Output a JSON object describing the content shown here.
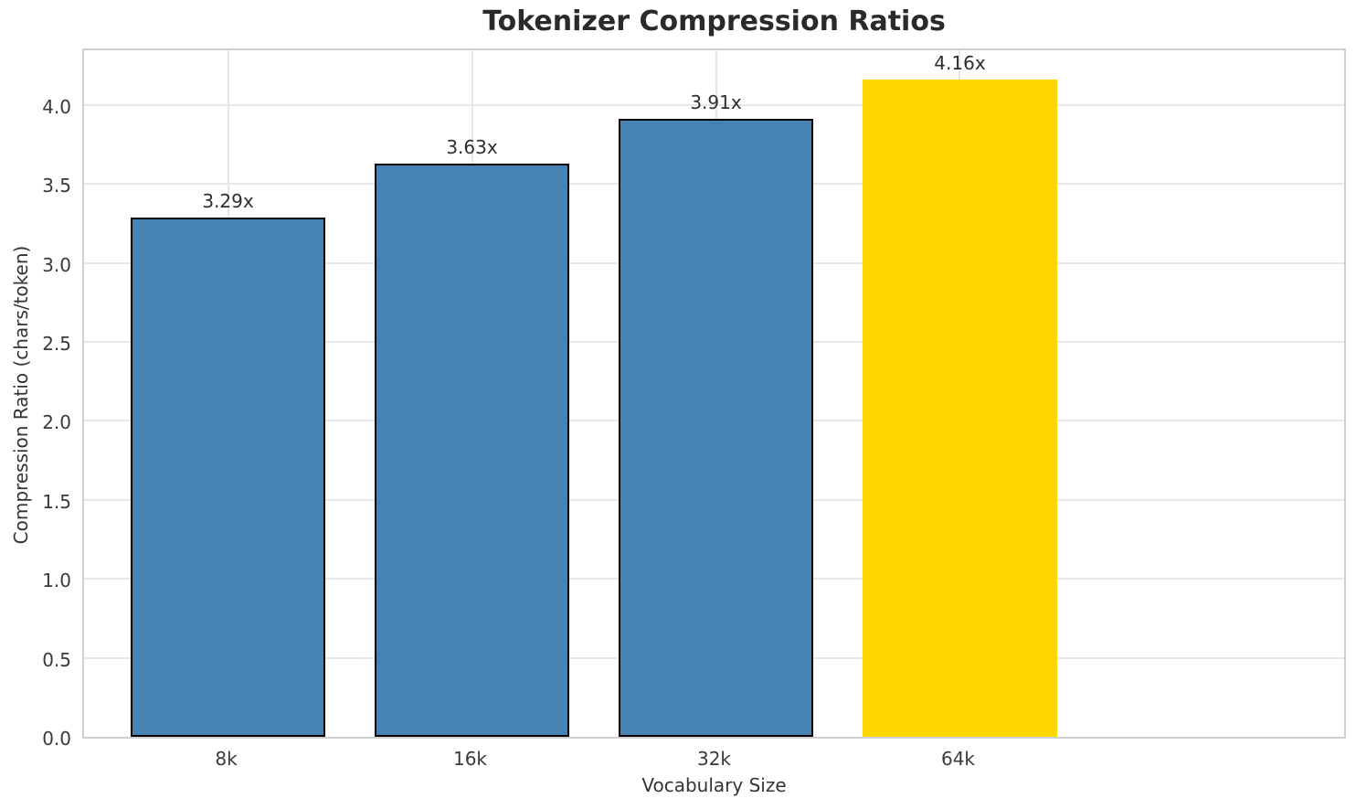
{
  "chart_data": {
    "type": "bar",
    "title": "Tokenizer Compression Ratios",
    "xlabel": "Vocabulary Size",
    "ylabel": "Compression Ratio (chars/token)",
    "categories": [
      "8k",
      "16k",
      "32k",
      "64k"
    ],
    "values": [
      3.29,
      3.63,
      3.91,
      4.16
    ],
    "bar_labels": [
      "3.29x",
      "3.63x",
      "3.91x",
      "4.16x"
    ],
    "bar_colors": [
      "#4682b4",
      "#4682b4",
      "#4682b4",
      "#ffd700"
    ],
    "bar_edge_colors": [
      "#000000",
      "#000000",
      "#000000",
      "none"
    ],
    "ytick_labels": [
      "0.0",
      "0.5",
      "1.0",
      "1.5",
      "2.0",
      "2.5",
      "3.0",
      "3.5",
      "4.0"
    ],
    "yticks": [
      0.0,
      0.5,
      1.0,
      1.5,
      2.0,
      2.5,
      3.0,
      3.5,
      4.0
    ],
    "ylim": [
      0,
      4.37
    ],
    "grid": true,
    "legend_position": "none",
    "colors": {
      "default_bar": "#4682b4",
      "highlight_bar": "#ffd700",
      "grid_line": "#e7e7e7",
      "spine": "#cfcfcf",
      "tick_text": "#3a3a3a",
      "title_text": "#2a2a2a"
    }
  }
}
